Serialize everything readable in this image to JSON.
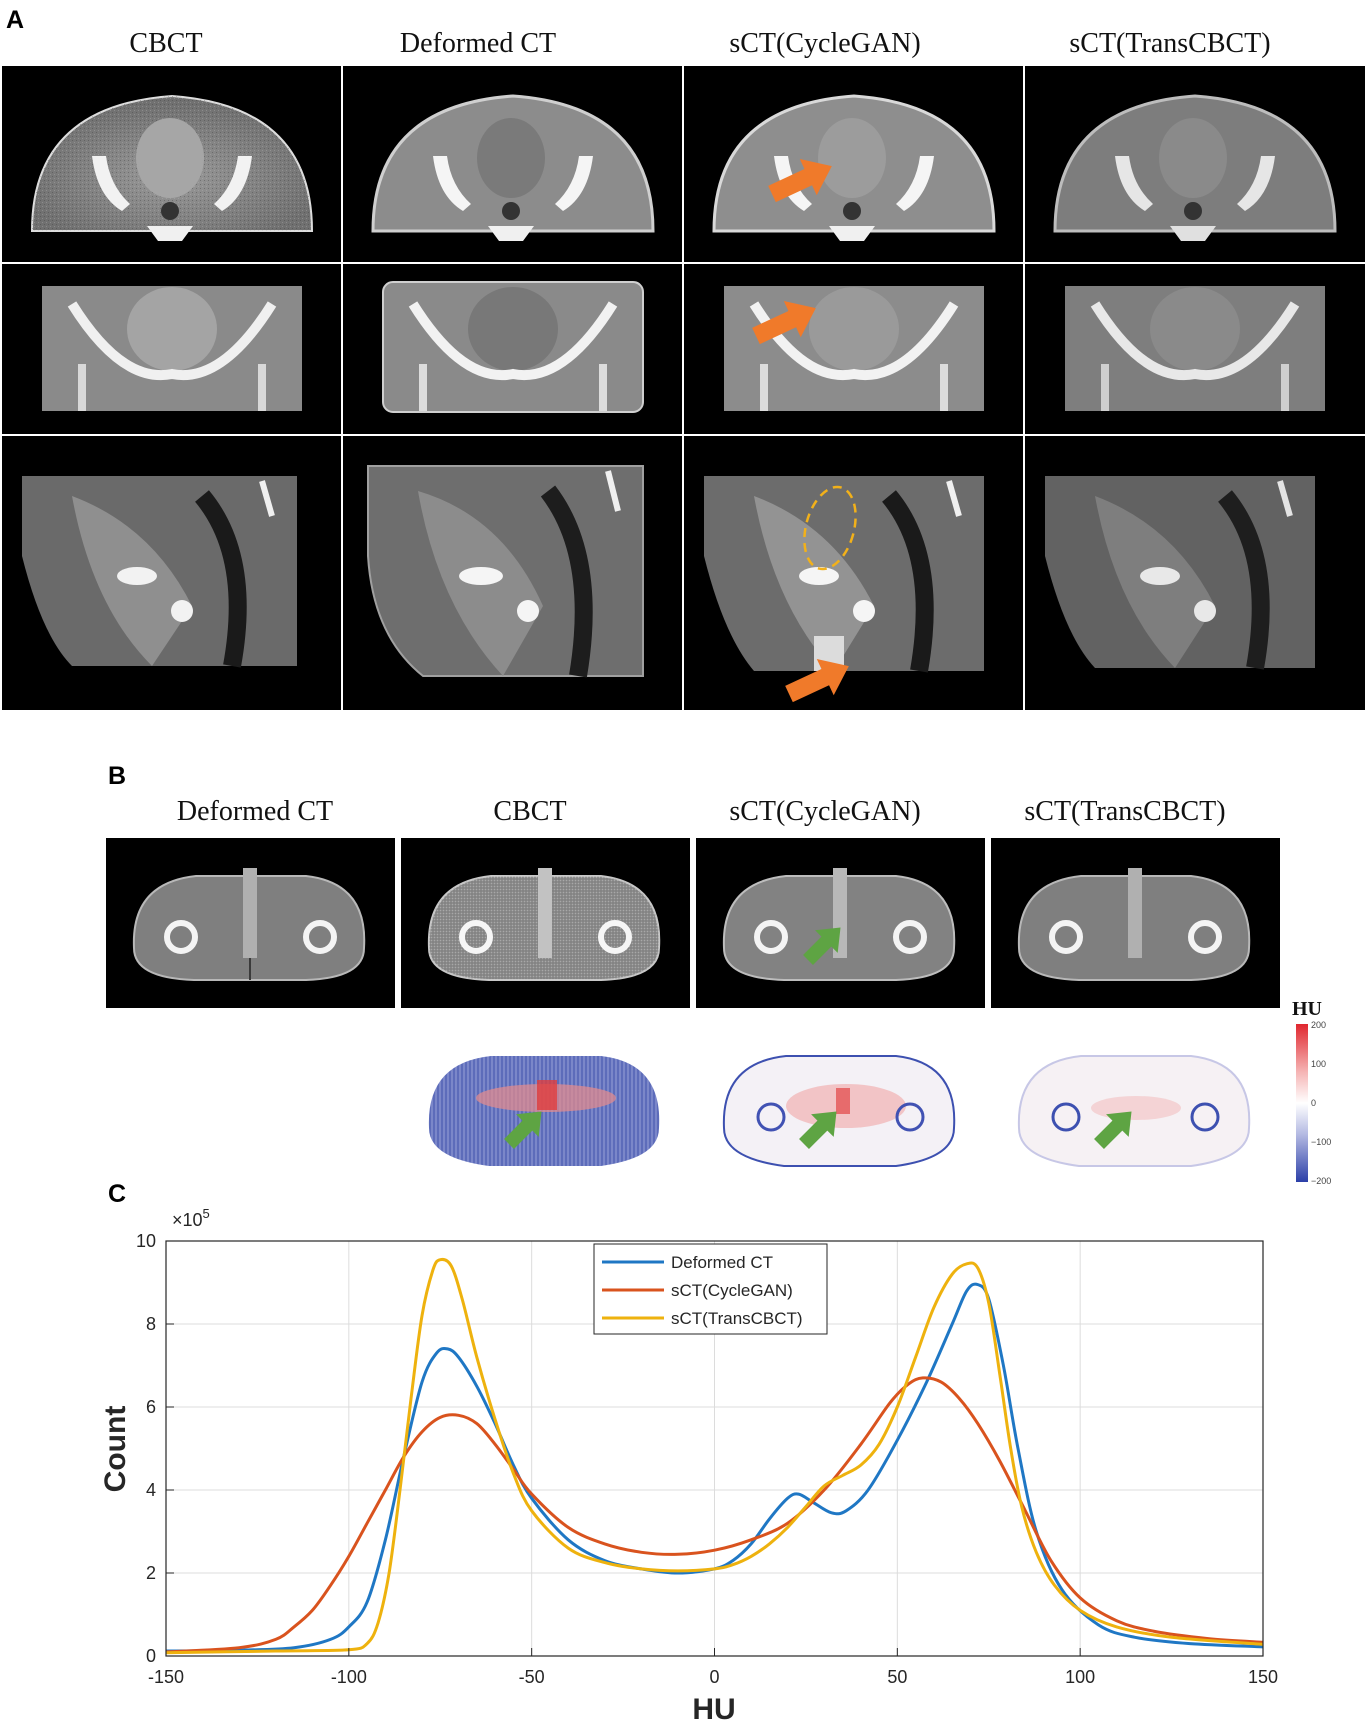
{
  "panels": {
    "a": {
      "letter": "A",
      "columns": [
        "CBCT",
        "Deformed CT",
        "sCT(CycleGAN)",
        "sCT(TransCBCT)"
      ]
    },
    "b": {
      "letter": "B",
      "columns": [
        "Deformed CT",
        "CBCT",
        "sCT(CycleGAN)",
        "sCT(TransCBCT)"
      ],
      "colorbar": {
        "title": "HU",
        "ticks": [
          "200",
          "100",
          "0",
          "−100",
          "−200"
        ],
        "colors": {
          "positive": "#e0272f",
          "zero": "#ffffff",
          "negative": "#2b3fa8"
        }
      }
    },
    "c": {
      "letter": "C"
    }
  },
  "markers": {
    "orange_arrow_color": "#f07a2a",
    "green_arrow_color": "#5ea443",
    "dashed_ellipse_color": "#f2b11a"
  },
  "chart_data": {
    "type": "line",
    "xlabel": "HU",
    "ylabel": "Count",
    "y_multiplier": "×10",
    "y_exponent": "5",
    "xlim": [
      -150,
      150
    ],
    "ylim": [
      0,
      10
    ],
    "xticks": [
      -150,
      -100,
      -50,
      0,
      50,
      100,
      150
    ],
    "yticks": [
      0,
      2,
      4,
      6,
      8,
      10
    ],
    "grid": true,
    "legend_placement": "top-center",
    "series": [
      {
        "name": "Deformed CT",
        "color": "#1f77c4",
        "points": [
          [
            -150,
            0.12
          ],
          [
            -130,
            0.14
          ],
          [
            -115,
            0.2
          ],
          [
            -105,
            0.4
          ],
          [
            -100,
            0.7
          ],
          [
            -95,
            1.3
          ],
          [
            -90,
            2.8
          ],
          [
            -85,
            4.8
          ],
          [
            -80,
            6.6
          ],
          [
            -76,
            7.3
          ],
          [
            -73,
            7.4
          ],
          [
            -70,
            7.2
          ],
          [
            -65,
            6.5
          ],
          [
            -60,
            5.6
          ],
          [
            -55,
            4.6
          ],
          [
            -50,
            3.8
          ],
          [
            -40,
            2.8
          ],
          [
            -30,
            2.3
          ],
          [
            -20,
            2.1
          ],
          [
            -10,
            2.0
          ],
          [
            0,
            2.1
          ],
          [
            5,
            2.3
          ],
          [
            10,
            2.7
          ],
          [
            15,
            3.3
          ],
          [
            20,
            3.8
          ],
          [
            23,
            3.9
          ],
          [
            27,
            3.7
          ],
          [
            32,
            3.45
          ],
          [
            36,
            3.5
          ],
          [
            42,
            4.0
          ],
          [
            50,
            5.2
          ],
          [
            58,
            6.6
          ],
          [
            65,
            8.0
          ],
          [
            69,
            8.8
          ],
          [
            72,
            8.95
          ],
          [
            75,
            8.6
          ],
          [
            79,
            7.0
          ],
          [
            83,
            5.0
          ],
          [
            88,
            3.0
          ],
          [
            95,
            1.6
          ],
          [
            105,
            0.75
          ],
          [
            115,
            0.45
          ],
          [
            130,
            0.3
          ],
          [
            150,
            0.22
          ]
        ]
      },
      {
        "name": "sCT(CycleGAN)",
        "color": "#d9531e",
        "points": [
          [
            -150,
            0.1
          ],
          [
            -130,
            0.2
          ],
          [
            -120,
            0.4
          ],
          [
            -115,
            0.7
          ],
          [
            -110,
            1.1
          ],
          [
            -105,
            1.7
          ],
          [
            -100,
            2.4
          ],
          [
            -95,
            3.2
          ],
          [
            -90,
            4.0
          ],
          [
            -85,
            4.8
          ],
          [
            -80,
            5.4
          ],
          [
            -75,
            5.75
          ],
          [
            -70,
            5.8
          ],
          [
            -65,
            5.6
          ],
          [
            -60,
            5.1
          ],
          [
            -55,
            4.5
          ],
          [
            -50,
            3.9
          ],
          [
            -40,
            3.1
          ],
          [
            -30,
            2.7
          ],
          [
            -20,
            2.5
          ],
          [
            -10,
            2.45
          ],
          [
            0,
            2.55
          ],
          [
            10,
            2.8
          ],
          [
            20,
            3.2
          ],
          [
            30,
            4.0
          ],
          [
            40,
            5.1
          ],
          [
            48,
            6.1
          ],
          [
            53,
            6.55
          ],
          [
            57,
            6.7
          ],
          [
            62,
            6.6
          ],
          [
            67,
            6.2
          ],
          [
            72,
            5.6
          ],
          [
            78,
            4.7
          ],
          [
            85,
            3.5
          ],
          [
            92,
            2.3
          ],
          [
            100,
            1.4
          ],
          [
            110,
            0.85
          ],
          [
            120,
            0.6
          ],
          [
            135,
            0.42
          ],
          [
            150,
            0.33
          ]
        ]
      },
      {
        "name": "sCT(TransCBCT)",
        "color": "#eeb20e",
        "points": [
          [
            -150,
            0.08
          ],
          [
            -120,
            0.12
          ],
          [
            -100,
            0.15
          ],
          [
            -95,
            0.3
          ],
          [
            -92,
            0.8
          ],
          [
            -89,
            2.0
          ],
          [
            -86,
            4.0
          ],
          [
            -83,
            6.2
          ],
          [
            -80,
            8.2
          ],
          [
            -77,
            9.3
          ],
          [
            -75,
            9.55
          ],
          [
            -72,
            9.4
          ],
          [
            -69,
            8.6
          ],
          [
            -65,
            7.2
          ],
          [
            -60,
            5.7
          ],
          [
            -55,
            4.4
          ],
          [
            -50,
            3.5
          ],
          [
            -40,
            2.6
          ],
          [
            -30,
            2.25
          ],
          [
            -20,
            2.1
          ],
          [
            -10,
            2.05
          ],
          [
            0,
            2.1
          ],
          [
            5,
            2.2
          ],
          [
            10,
            2.4
          ],
          [
            15,
            2.7
          ],
          [
            20,
            3.1
          ],
          [
            25,
            3.6
          ],
          [
            30,
            4.1
          ],
          [
            35,
            4.35
          ],
          [
            40,
            4.6
          ],
          [
            45,
            5.1
          ],
          [
            50,
            6.0
          ],
          [
            55,
            7.2
          ],
          [
            60,
            8.4
          ],
          [
            65,
            9.2
          ],
          [
            69,
            9.45
          ],
          [
            72,
            9.35
          ],
          [
            75,
            8.5
          ],
          [
            78,
            6.8
          ],
          [
            81,
            5.0
          ],
          [
            84,
            3.6
          ],
          [
            88,
            2.5
          ],
          [
            93,
            1.7
          ],
          [
            100,
            1.1
          ],
          [
            110,
            0.7
          ],
          [
            125,
            0.45
          ],
          [
            150,
            0.28
          ]
        ]
      }
    ]
  }
}
